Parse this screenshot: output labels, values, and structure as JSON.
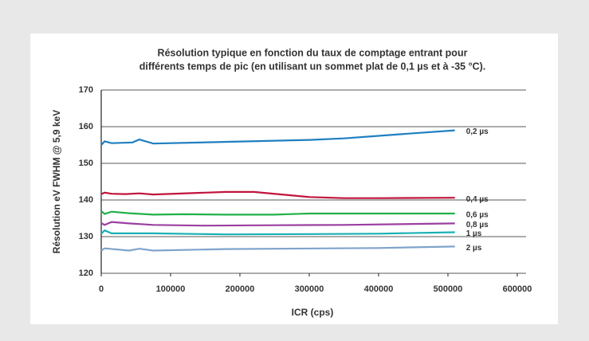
{
  "chart_data": {
    "type": "line",
    "title": [
      "Résolution typique en fonction du taux de comptage entrant pour",
      "différents temps de pic (en utilisant un sommet plat de 0,1 µs et à -35 °C)."
    ],
    "xlabel": "ICR (cps)",
    "ylabel": "Résolution eV FWHM @ 5,9 keV",
    "xlim": [
      0,
      600000
    ],
    "xticks": [
      0,
      100000,
      200000,
      300000,
      400000,
      500000,
      600000
    ],
    "ylim": [
      120,
      170
    ],
    "yticks": [
      120,
      130,
      140,
      150,
      160,
      170
    ],
    "grid": true,
    "series": [
      {
        "name": "0,2 µs",
        "color": "#1f7fc0",
        "x": [
          0,
          5000,
          15000,
          45000,
          55000,
          75000,
          300000,
          350000,
          400000,
          450000,
          510000
        ],
        "values": [
          155,
          156,
          155.5,
          155.7,
          156.5,
          155.4,
          156.4,
          156.8,
          157.5,
          158.2,
          159
        ]
      },
      {
        "name": "0,4 µs",
        "color": "#c0143c",
        "x": [
          0,
          5000,
          15000,
          35000,
          55000,
          75000,
          180000,
          220000,
          300000,
          350000,
          400000,
          510000
        ],
        "values": [
          141.6,
          142,
          141.7,
          141.6,
          141.8,
          141.5,
          142.2,
          142.2,
          140.8,
          140.5,
          140.5,
          140.6
        ]
      },
      {
        "name": "0,6 µs",
        "color": "#22b04a",
        "x": [
          0,
          5000,
          15000,
          40000,
          75000,
          120000,
          180000,
          250000,
          300000,
          400000,
          510000
        ],
        "values": [
          137,
          136.2,
          136.8,
          136.4,
          136,
          136.1,
          136,
          136,
          136.3,
          136.3,
          136.3
        ]
      },
      {
        "name": "0,8 µs",
        "color": "#9b3fa0",
        "x": [
          0,
          5000,
          15000,
          40000,
          75000,
          150000,
          250000,
          350000,
          510000
        ],
        "values": [
          133.7,
          133.2,
          134,
          133.6,
          133.2,
          133,
          133.1,
          133.2,
          133.6
        ]
      },
      {
        "name": "1 µs",
        "color": "#18b0b4",
        "x": [
          0,
          5000,
          15000,
          75000,
          180000,
          300000,
          400000,
          510000
        ],
        "values": [
          130.8,
          131.7,
          130.9,
          130.9,
          130.6,
          130.7,
          130.8,
          131.2
        ]
      },
      {
        "name": "2 µs",
        "color": "#7fa3cc",
        "x": [
          0,
          5000,
          40000,
          55000,
          75000,
          180000,
          400000,
          510000
        ],
        "values": [
          126.2,
          126.8,
          126.2,
          126.7,
          126.2,
          126.6,
          126.9,
          127.3
        ]
      }
    ]
  }
}
